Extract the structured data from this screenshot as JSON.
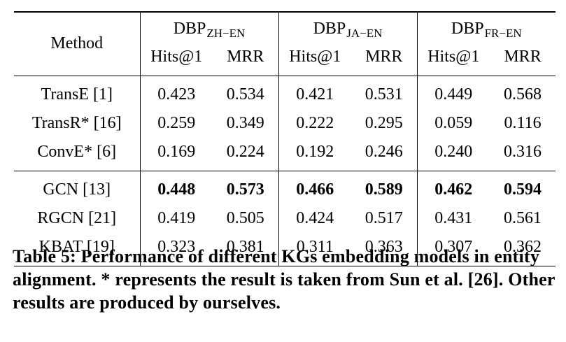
{
  "table": {
    "method_header": "Method",
    "datasets": [
      {
        "base": "DBP",
        "sub": "ZH−EN"
      },
      {
        "base": "DBP",
        "sub": "JA−EN"
      },
      {
        "base": "DBP",
        "sub": "FR−EN"
      }
    ],
    "metric_headers": [
      "Hits@1",
      "MRR",
      "Hits@1",
      "MRR",
      "Hits@1",
      "MRR"
    ],
    "group1": [
      {
        "method": "TransE [1]",
        "values": [
          "0.423",
          "0.534",
          "0.421",
          "0.531",
          "0.449",
          "0.568"
        ]
      },
      {
        "method": "TransR* [16]",
        "values": [
          "0.259",
          "0.349",
          "0.222",
          "0.295",
          "0.059",
          "0.116"
        ]
      },
      {
        "method": "ConvE* [6]",
        "values": [
          "0.169",
          "0.224",
          "0.192",
          "0.246",
          "0.240",
          "0.316"
        ]
      }
    ],
    "group2": [
      {
        "method": "GCN [13]",
        "values": [
          "0.448",
          "0.573",
          "0.466",
          "0.589",
          "0.462",
          "0.594"
        ],
        "bold": true
      },
      {
        "method": "RGCN [21]",
        "values": [
          "0.419",
          "0.505",
          "0.424",
          "0.517",
          "0.431",
          "0.561"
        ]
      },
      {
        "method": "KBAT [19]",
        "values": [
          "0.323",
          "0.381",
          "0.311",
          "0.363",
          "0.307",
          "0.362"
        ]
      }
    ]
  },
  "caption": "Table 5: Performance of different KGs embedding models in entity alignment. * represents the result is taken from Sun et al. [26]. Other results are produced by ourselves."
}
